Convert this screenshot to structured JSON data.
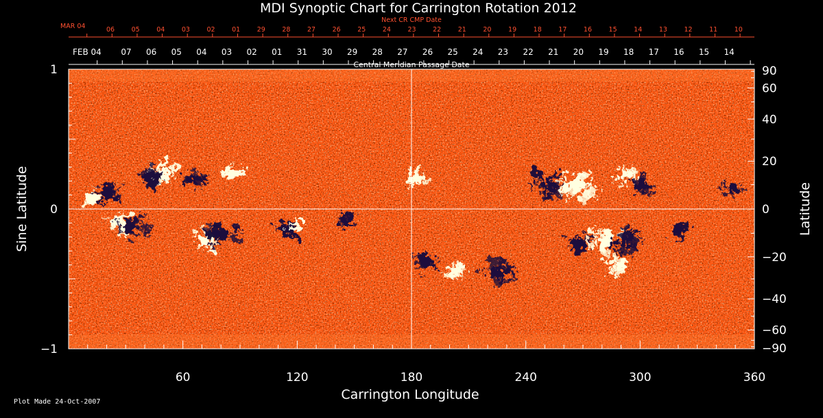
{
  "chart_data": {
    "type": "heatmap",
    "title": "MDI Synoptic Chart for Carrington Rotation 2012",
    "xlabel": "Carrington Longitude",
    "ylabel_left": "Sine Latitude",
    "ylabel_right": "Latitude",
    "xlim": [
      0,
      360
    ],
    "ylim": [
      -1,
      1
    ],
    "x_ticks": [
      "60",
      "120",
      "180",
      "240",
      "300",
      "360"
    ],
    "x_tick_values": [
      60,
      120,
      180,
      240,
      300,
      360
    ],
    "y_left_ticks": [
      "1",
      "0",
      "−1"
    ],
    "y_left_tick_values": [
      1,
      0,
      -1
    ],
    "y_right_ticks": [
      "90",
      "60",
      "40",
      "20",
      "0",
      "−20",
      "−40",
      "−60",
      "−90"
    ],
    "y_right_tick_values": [
      90,
      60,
      40,
      20,
      0,
      -20,
      -40,
      -60,
      -90
    ],
    "top_axis_title": "Central Meridian Passage Date",
    "top_axis_start_label": "FEB 04",
    "top_axis_dates": [
      "07",
      "06",
      "05",
      "04",
      "03",
      "02",
      "01",
      "31",
      "30",
      "29",
      "28",
      "27",
      "26",
      "25",
      "24",
      "23",
      "22",
      "21",
      "20",
      "19",
      "18",
      "17",
      "16",
      "15",
      "14"
    ],
    "next_cr_title": "Next CR CMP Date",
    "next_cr_start_label": "MAR 04",
    "next_cr_dates": [
      "06",
      "05",
      "04",
      "03",
      "02",
      "01",
      "29",
      "28",
      "27",
      "26",
      "25",
      "24",
      "23",
      "22",
      "21",
      "20",
      "19",
      "18",
      "17",
      "16",
      "15",
      "14",
      "13",
      "12",
      "11",
      "10"
    ],
    "grid": "crosshair at longitude 180 and sine latitude 0",
    "colors": {
      "background": "#ff5a14",
      "positive_polarity": "#ffffe0",
      "negative_polarity": "#1c0f3c",
      "date_axis_red": "#ff5030",
      "text": "#ffffff"
    },
    "magnetic_regions": [
      {
        "lon": 50,
        "sinlat": 0.24,
        "polarity": "positive",
        "strength": 0.9
      },
      {
        "lon": 44,
        "sinlat": 0.23,
        "polarity": "negative",
        "strength": 0.9
      },
      {
        "lon": 12,
        "sinlat": 0.08,
        "polarity": "positive",
        "strength": 0.6
      },
      {
        "lon": 20,
        "sinlat": 0.12,
        "polarity": "negative",
        "strength": 0.8
      },
      {
        "lon": 27,
        "sinlat": -0.1,
        "polarity": "positive",
        "strength": 0.9
      },
      {
        "lon": 33,
        "sinlat": -0.13,
        "polarity": "negative",
        "strength": 0.9
      },
      {
        "lon": 72,
        "sinlat": -0.22,
        "polarity": "positive",
        "strength": 0.8
      },
      {
        "lon": 80,
        "sinlat": -0.18,
        "polarity": "negative",
        "strength": 1.0
      },
      {
        "lon": 66,
        "sinlat": 0.22,
        "polarity": "negative",
        "strength": 0.6
      },
      {
        "lon": 86,
        "sinlat": 0.25,
        "polarity": "positive",
        "strength": 0.6
      },
      {
        "lon": 115,
        "sinlat": -0.15,
        "polarity": "negative",
        "strength": 0.7
      },
      {
        "lon": 120,
        "sinlat": -0.12,
        "polarity": "positive",
        "strength": 0.5
      },
      {
        "lon": 145,
        "sinlat": -0.08,
        "polarity": "negative",
        "strength": 0.5
      },
      {
        "lon": 183,
        "sinlat": 0.22,
        "polarity": "positive",
        "strength": 0.6
      },
      {
        "lon": 188,
        "sinlat": -0.37,
        "polarity": "negative",
        "strength": 0.7
      },
      {
        "lon": 203,
        "sinlat": -0.45,
        "polarity": "positive",
        "strength": 0.6
      },
      {
        "lon": 225,
        "sinlat": -0.45,
        "polarity": "negative",
        "strength": 0.9
      },
      {
        "lon": 252,
        "sinlat": 0.18,
        "polarity": "negative",
        "strength": 1.0
      },
      {
        "lon": 266,
        "sinlat": 0.17,
        "polarity": "positive",
        "strength": 1.0
      },
      {
        "lon": 268,
        "sinlat": -0.25,
        "polarity": "negative",
        "strength": 0.7
      },
      {
        "lon": 282,
        "sinlat": -0.22,
        "polarity": "positive",
        "strength": 1.0
      },
      {
        "lon": 292,
        "sinlat": -0.23,
        "polarity": "negative",
        "strength": 1.0
      },
      {
        "lon": 290,
        "sinlat": -0.4,
        "polarity": "positive",
        "strength": 0.7
      },
      {
        "lon": 292,
        "sinlat": 0.24,
        "polarity": "positive",
        "strength": 0.7
      },
      {
        "lon": 300,
        "sinlat": 0.17,
        "polarity": "negative",
        "strength": 0.8
      },
      {
        "lon": 320,
        "sinlat": -0.15,
        "polarity": "negative",
        "strength": 0.5
      },
      {
        "lon": 348,
        "sinlat": 0.15,
        "polarity": "negative",
        "strength": 0.6
      }
    ]
  },
  "footer": {
    "plot_made": "Plot Made 24-Oct-2007"
  }
}
